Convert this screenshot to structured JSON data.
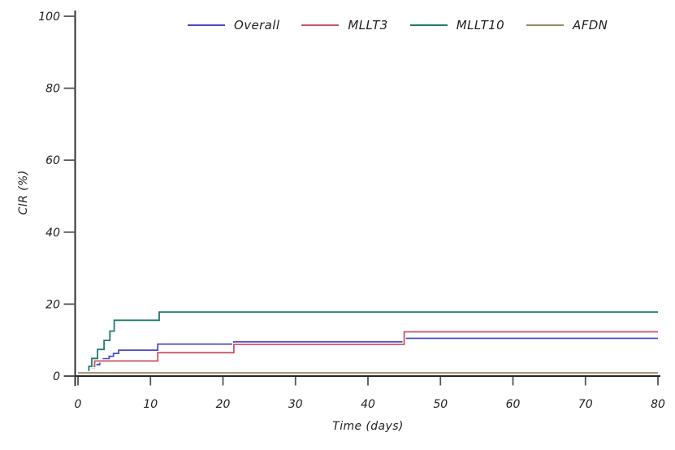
{
  "figure": {
    "background": "#ffffff",
    "axis_color": "#262626",
    "tick_color": "#555555",
    "text_color": "#1e1e1e"
  },
  "chart_data": {
    "type": "line",
    "subtype": "step-cumulative-incidence",
    "title": "",
    "xlabel": "Time (days)",
    "ylabel": "CIR (%)",
    "xlim": [
      0,
      80
    ],
    "ylim": [
      0,
      100
    ],
    "xticks": [
      0,
      10,
      20,
      30,
      40,
      50,
      60,
      70,
      80
    ],
    "yticks": [
      0,
      20,
      40,
      60,
      80,
      100
    ],
    "grid": false,
    "legend_position": "top-center",
    "series": [
      {
        "name": "Overall",
        "color": "#4b4bc4",
        "points": [
          [
            0,
            0
          ],
          [
            1.5,
            2.4
          ],
          [
            2.3,
            3.2
          ],
          [
            3.0,
            4.0
          ],
          [
            3.5,
            4.8
          ],
          [
            4.3,
            5.5
          ],
          [
            4.9,
            6.3
          ],
          [
            5.6,
            7.2
          ],
          [
            11,
            8.9
          ],
          [
            21.5,
            9.5
          ],
          [
            45,
            10.5
          ],
          [
            80,
            10.5
          ]
        ]
      },
      {
        "name": "MLLT3",
        "color": "#cb5565",
        "points": [
          [
            0,
            0
          ],
          [
            1.5,
            2.7
          ],
          [
            2.3,
            4.2
          ],
          [
            11,
            6.5
          ],
          [
            21.5,
            8.8
          ],
          [
            45,
            12.3
          ],
          [
            80,
            12.3
          ]
        ]
      },
      {
        "name": "MLLT10",
        "color": "#1e7d71",
        "points": [
          [
            0,
            0
          ],
          [
            1.5,
            2.7
          ],
          [
            1.9,
            4.9
          ],
          [
            2.7,
            7.4
          ],
          [
            3.6,
            9.9
          ],
          [
            4.4,
            12.5
          ],
          [
            5.0,
            15.5
          ],
          [
            11.2,
            17.8
          ],
          [
            80,
            17.8
          ]
        ]
      },
      {
        "name": "AFDN",
        "color": "#a0875f",
        "points": [
          [
            0,
            0
          ],
          [
            80,
            0
          ]
        ]
      }
    ]
  }
}
